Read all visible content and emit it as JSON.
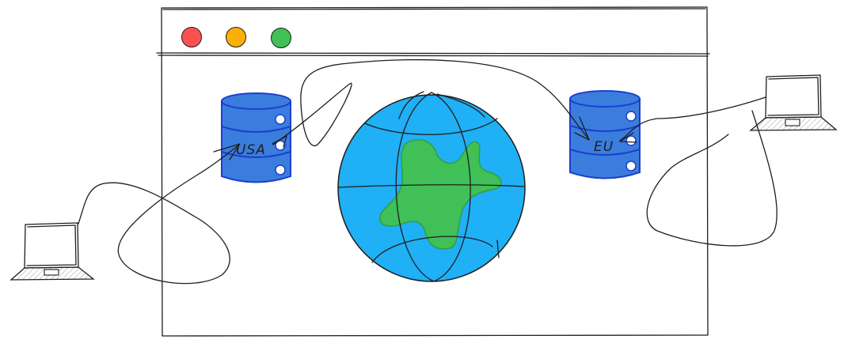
{
  "servers": {
    "usa": {
      "label": "USA"
    },
    "eu": {
      "label": "EU"
    }
  },
  "colors": {
    "traffic_red": "#fa5252",
    "traffic_yellow": "#fab005",
    "traffic_green": "#40c057",
    "db_fill": "#3b7ddd",
    "db_stroke": "#1c3fd1",
    "ocean": "#1fb0f5",
    "land": "#40c057",
    "screen_fill": "#ffffff",
    "base_fill": "#dedede",
    "line": "#1e1e1e"
  },
  "icons": {
    "browser_window": "browser-window-icon",
    "globe": "globe-icon",
    "database": "database-icon",
    "laptop": "laptop-icon"
  }
}
